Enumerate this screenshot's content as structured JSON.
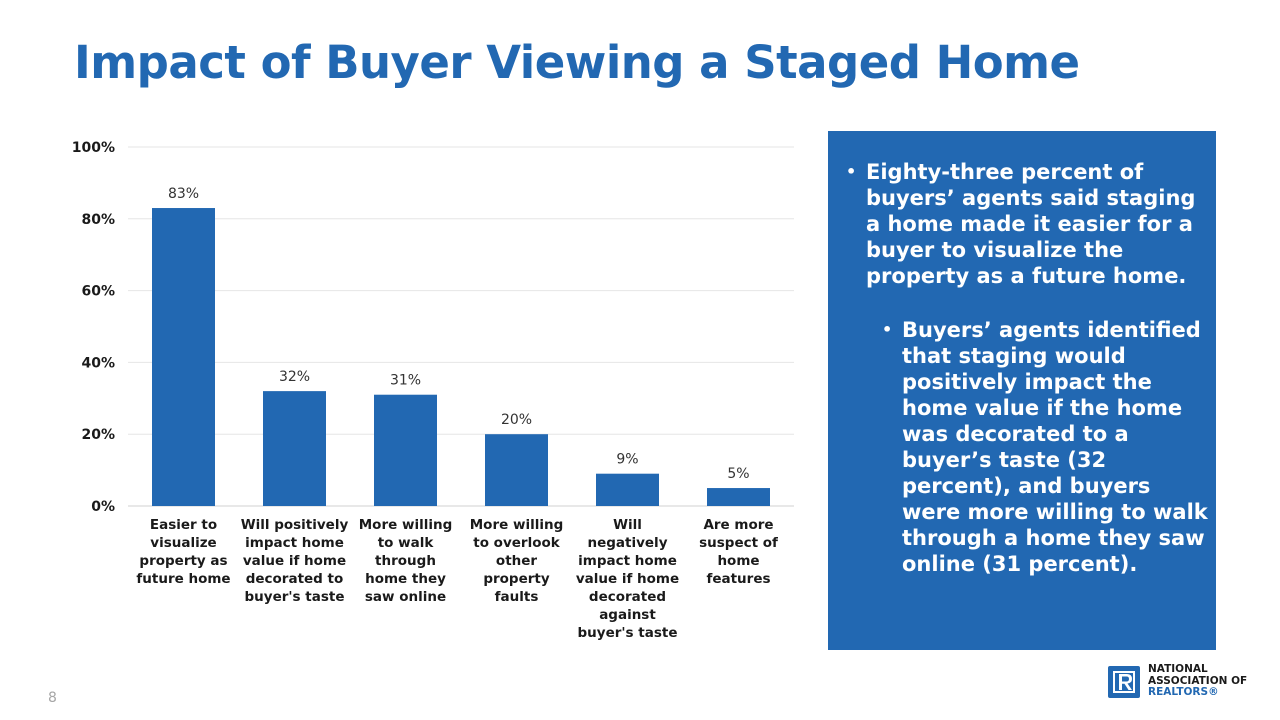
{
  "title": "Impact of Buyer Viewing a Staged Home",
  "chart_data": {
    "type": "bar",
    "categories": [
      [
        "Easier to",
        "visualize",
        "property as",
        "future home"
      ],
      [
        "Will positively",
        "impact home",
        "value if home",
        "decorated to",
        "buyer's taste"
      ],
      [
        "More willing",
        "to walk",
        "through",
        "home they",
        "saw online"
      ],
      [
        "More willing",
        "to overlook",
        "other",
        "property",
        "faults"
      ],
      [
        "Will",
        "negatively",
        "impact home",
        "value if home",
        "decorated",
        "against",
        "buyer's taste"
      ],
      [
        "Are more",
        "suspect of",
        "home",
        "features"
      ]
    ],
    "values": [
      83,
      32,
      31,
      20,
      9,
      5
    ],
    "value_labels": [
      "83%",
      "32%",
      "31%",
      "20%",
      "9%",
      "5%"
    ],
    "ylim": [
      0,
      100
    ],
    "yticks": [
      0,
      20,
      40,
      60,
      80,
      100
    ],
    "ytick_labels": [
      "0%",
      "20%",
      "40%",
      "60%",
      "80%",
      "100%"
    ],
    "grid": true,
    "bar_color": "#2268b2",
    "xlabel": "",
    "ylabel": ""
  },
  "callout": {
    "main": "Eighty-three percent of buyers’ agents said staging a home made it easier for a buyer to visualize the property as a future home.",
    "sub": "Buyers’ agents identified that staging would positively impact the home value if the home was decorated to a buyer’s taste (32 percent), and buyers were more willing to walk through a home they saw online (31 percent).",
    "background": "#2268b2"
  },
  "page_number": "8",
  "logo": {
    "icon": "realtor-r-logo-icon",
    "lines": [
      "NATIONAL",
      "ASSOCIATION OF",
      "REALTORS®"
    ]
  }
}
